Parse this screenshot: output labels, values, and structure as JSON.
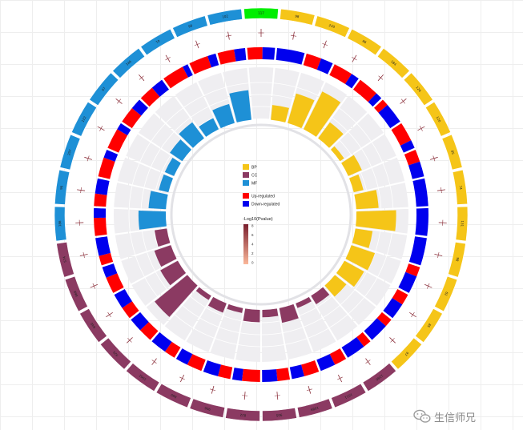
{
  "chart_data": {
    "type": "circular-bar",
    "title": "",
    "legend": {
      "category_entries": [
        {
          "label": "BP",
          "color": "#f5c518"
        },
        {
          "label": "CC",
          "color": "#8b3a62"
        },
        {
          "label": "MF",
          "color": "#1e90d6"
        }
      ],
      "regulation_entries": [
        {
          "label": "Up-regulated",
          "color": "#ff0000"
        },
        {
          "label": "Down-regulated",
          "color": "#0000ee"
        }
      ],
      "gradient_title": "-Log10(Pvalue)",
      "gradient_ticks": [
        "8",
        "6",
        "4",
        "2",
        "0"
      ],
      "gradient_colors": [
        "#7a1f2e",
        "#fbb89a"
      ]
    },
    "colors": {
      "BP": "#f5c518",
      "CC": "#8b3a62",
      "MF": "#1e90d6",
      "MF_highlight": "#00ee00",
      "up": "#ff0000",
      "down": "#0000ee",
      "background_sector": "#efeef1"
    },
    "terms": [
      {
        "category": "MF_highlight",
        "count": "117",
        "up_fraction": 0.55,
        "bar": 0.0
      },
      {
        "category": "BP",
        "count": "98",
        "up_fraction": 0.0,
        "bar": 0.3
      },
      {
        "category": "BP",
        "count": "230",
        "up_fraction": 0.55,
        "bar": 0.62
      },
      {
        "category": "BP",
        "count": "86",
        "up_fraction": 0.7,
        "bar": 0.85
      },
      {
        "category": "BP",
        "count": "184",
        "up_fraction": 0.75,
        "bar": 0.4
      },
      {
        "category": "BP",
        "count": "126",
        "up_fraction": 0.25,
        "bar": 0.1
      },
      {
        "category": "BP",
        "count": "120",
        "up_fraction": 0.7,
        "bar": 0.3
      },
      {
        "category": "BP",
        "count": "85",
        "up_fraction": 0.45,
        "bar": 0.2
      },
      {
        "category": "BP",
        "count": "74",
        "up_fraction": 0.0,
        "bar": 0.45
      },
      {
        "category": "BP",
        "count": "131",
        "up_fraction": 0.0,
        "bar": 0.8
      },
      {
        "category": "BP",
        "count": "98",
        "up_fraction": 0.0,
        "bar": 0.35
      },
      {
        "category": "BP",
        "count": "62",
        "up_fraction": 0.35,
        "bar": 0.5
      },
      {
        "category": "BP",
        "count": "85",
        "up_fraction": 0.4,
        "bar": 0.45
      },
      {
        "category": "BP",
        "count": "97",
        "up_fraction": 0.3,
        "bar": 0.3
      },
      {
        "category": "CC",
        "count": "1280",
        "up_fraction": 0.3,
        "bar": 0.2
      },
      {
        "category": "CC",
        "count": "1011",
        "up_fraction": 0.45,
        "bar": 0.1
      },
      {
        "category": "CC",
        "count": "1089",
        "up_fraction": 0.55,
        "bar": 0.3
      },
      {
        "category": "CC",
        "count": "905",
        "up_fraction": 0.45,
        "bar": 0.15
      },
      {
        "category": "CC",
        "count": "822",
        "up_fraction": 0.65,
        "bar": 0.25
      },
      {
        "category": "CC",
        "count": "906",
        "up_fraction": 0.45,
        "bar": 0.1
      },
      {
        "category": "CC",
        "count": "860",
        "up_fraction": 0.55,
        "bar": 0.2
      },
      {
        "category": "CC",
        "count": "1062",
        "up_fraction": 0.4,
        "bar": 0.1
      },
      {
        "category": "CC",
        "count": "925",
        "up_fraction": 0.5,
        "bar": 0.85
      },
      {
        "category": "CC",
        "count": "640",
        "up_fraction": 0.45,
        "bar": 0.4
      },
      {
        "category": "CC",
        "count": "868",
        "up_fraction": 0.6,
        "bar": 0.35
      },
      {
        "category": "CC",
        "count": "574",
        "up_fraction": 0.35,
        "bar": 0.25
      },
      {
        "category": "MF",
        "count": "186",
        "up_fraction": 0.65,
        "bar": 0.55
      },
      {
        "category": "MF",
        "count": "96",
        "up_fraction": 0.45,
        "bar": 0.35
      },
      {
        "category": "MF",
        "count": "207",
        "up_fraction": 0.7,
        "bar": 0.2
      },
      {
        "category": "MF",
        "count": "122",
        "up_fraction": 0.75,
        "bar": 0.2
      },
      {
        "category": "MF",
        "count": "67",
        "up_fraction": 0.6,
        "bar": 0.3
      },
      {
        "category": "MF",
        "count": "146",
        "up_fraction": 0.55,
        "bar": 0.4
      },
      {
        "category": "MF",
        "count": "70",
        "up_fraction": 0.8,
        "bar": 0.25
      },
      {
        "category": "MF",
        "count": "98",
        "up_fraction": 0.7,
        "bar": 0.4
      },
      {
        "category": "MF",
        "count": "102",
        "up_fraction": 0.6,
        "bar": 0.6
      }
    ]
  },
  "watermark": {
    "text": "生信师兄",
    "icon": "wechat-icon"
  }
}
